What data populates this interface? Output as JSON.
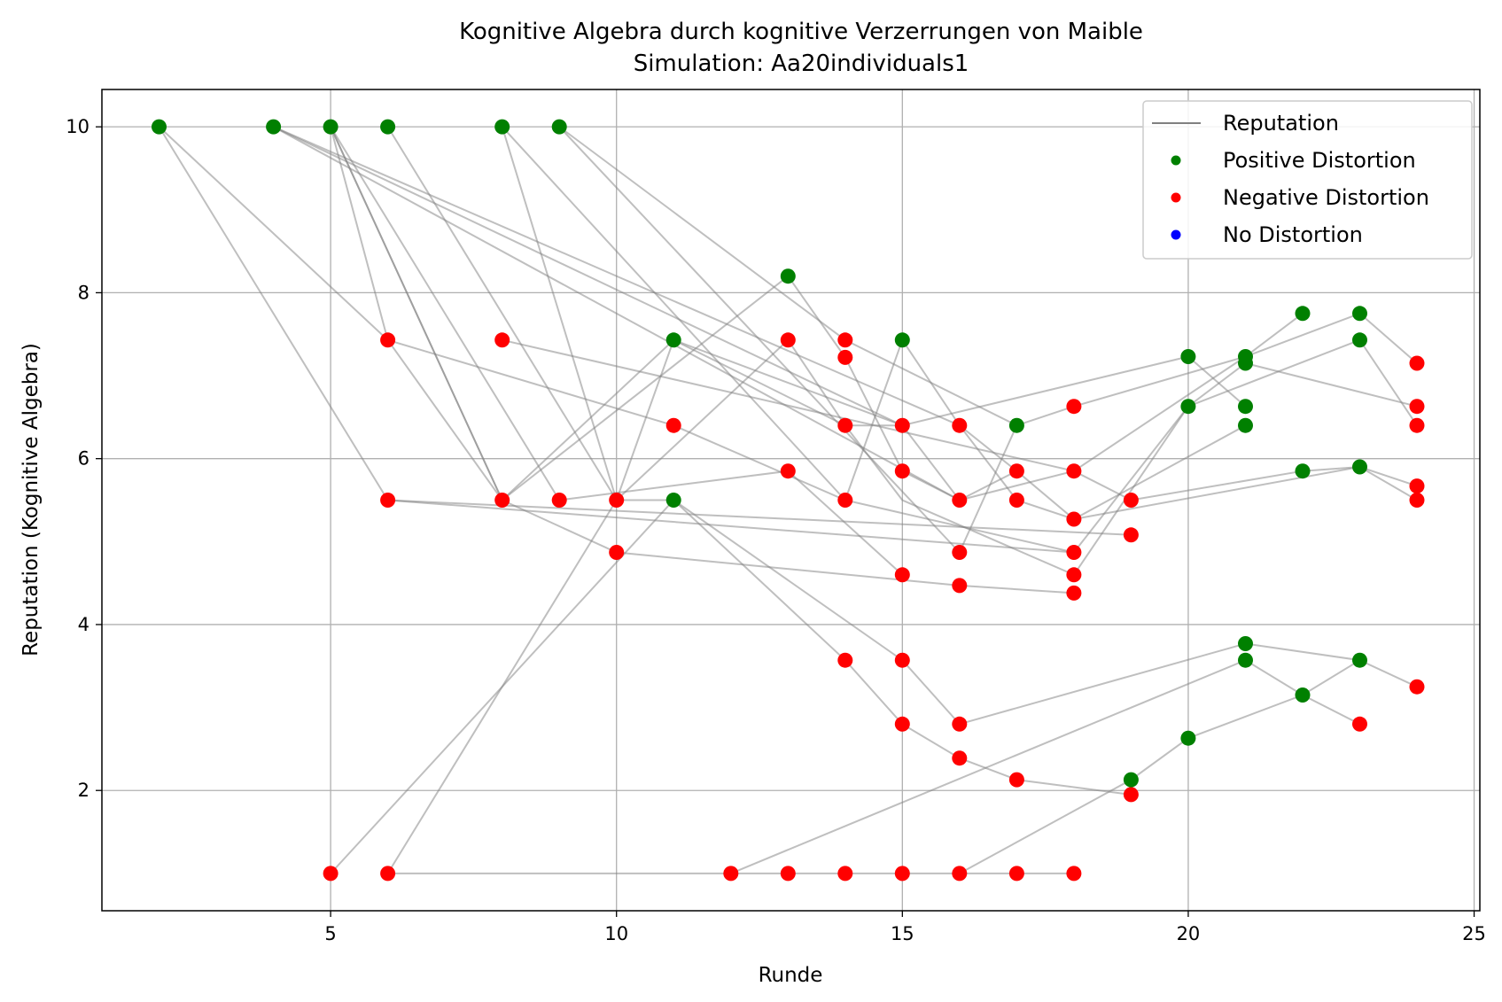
{
  "chart_data": {
    "type": "scatter",
    "title": "Kognitive Algebra durch kognitive Verzerrungen von Maible",
    "subtitle": "Simulation: Aa20individuals1",
    "xlabel": "Runde",
    "ylabel": "Reputation (Kognitive Algebra)",
    "xlim": [
      1,
      25.1
    ],
    "ylim": [
      0.55,
      10.45
    ],
    "xticks": [
      5,
      10,
      15,
      20,
      25
    ],
    "yticks": [
      2,
      4,
      6,
      8,
      10
    ],
    "grid": true,
    "legend_position": "top-right",
    "legend": [
      {
        "label": "Reputation",
        "kind": "line",
        "color": "#808080"
      },
      {
        "label": "Positive Distortion",
        "kind": "marker",
        "color": "#008000"
      },
      {
        "label": "Negative Distortion",
        "kind": "marker",
        "color": "#ff0000"
      },
      {
        "label": "No Distortion",
        "kind": "marker",
        "color": "#0000ff"
      }
    ],
    "colors": {
      "positive": "#008000",
      "negative": "#ff0000",
      "none": "#0000ff",
      "line": "#808080"
    },
    "trajectories": [
      [
        [
          2,
          10
        ],
        [
          6,
          7.43
        ],
        [
          11,
          6.4
        ],
        [
          14,
          5.5
        ],
        [
          15,
          7.43
        ],
        [
          16,
          6.4
        ],
        [
          17,
          5.85
        ],
        [
          18,
          5.27
        ],
        [
          21,
          6.4
        ]
      ],
      [
        [
          2,
          10
        ],
        [
          6,
          5.5
        ],
        [
          18,
          4.87
        ],
        [
          20,
          6.63
        ],
        [
          21,
          7.15
        ],
        [
          24,
          6.63
        ]
      ],
      [
        [
          4,
          10
        ],
        [
          16,
          5.5
        ],
        [
          18,
          5.85
        ],
        [
          21,
          7.23
        ],
        [
          22,
          7.75
        ]
      ],
      [
        [
          4,
          10
        ],
        [
          15,
          6.4
        ],
        [
          20,
          7.23
        ],
        [
          21,
          6.63
        ]
      ],
      [
        [
          4,
          10
        ],
        [
          16,
          6.4
        ],
        [
          17,
          5.5
        ],
        [
          18,
          5.27
        ],
        [
          23,
          5.9
        ],
        [
          24,
          5.5
        ]
      ],
      [
        [
          5,
          10
        ],
        [
          8,
          5.5
        ],
        [
          10,
          4.87
        ],
        [
          16,
          4.47
        ],
        [
          18,
          4.38
        ]
      ],
      [
        [
          5,
          10
        ],
        [
          8,
          5.5
        ],
        [
          11,
          7.43
        ],
        [
          14,
          6.4
        ],
        [
          15,
          5.5
        ],
        [
          18,
          4.6
        ],
        [
          20,
          6.63
        ],
        [
          23,
          7.43
        ],
        [
          24,
          6.4
        ]
      ],
      [
        [
          5,
          10
        ],
        [
          6,
          7.43
        ],
        [
          8,
          5.5
        ],
        [
          13,
          8.2
        ],
        [
          14,
          7.22
        ],
        [
          15,
          5.85
        ],
        [
          16,
          5.5
        ]
      ],
      [
        [
          5,
          10
        ],
        [
          9,
          5.5
        ],
        [
          13,
          5.85
        ],
        [
          15,
          4.6
        ]
      ],
      [
        [
          6,
          10
        ],
        [
          10,
          5.5
        ],
        [
          11,
          5.5
        ],
        [
          14,
          3.57
        ],
        [
          15,
          2.8
        ],
        [
          16,
          2.39
        ],
        [
          17,
          2.13
        ],
        [
          19,
          1.95
        ]
      ],
      [
        [
          8,
          10
        ],
        [
          10,
          5.5
        ],
        [
          11,
          7.43
        ],
        [
          15,
          6.4
        ],
        [
          16,
          5.5
        ],
        [
          17,
          5.85
        ]
      ],
      [
        [
          8,
          10
        ],
        [
          14,
          5.5
        ],
        [
          18,
          4.87
        ]
      ],
      [
        [
          8,
          7.43
        ],
        [
          18,
          5.85
        ],
        [
          19,
          5.5
        ],
        [
          22,
          5.85
        ],
        [
          23,
          5.9
        ],
        [
          24,
          5.67
        ]
      ],
      [
        [
          9,
          10
        ],
        [
          14,
          7.43
        ],
        [
          17,
          6.4
        ],
        [
          18,
          6.63
        ],
        [
          21,
          7.23
        ],
        [
          23,
          7.75
        ],
        [
          24,
          7.15
        ]
      ],
      [
        [
          9,
          10
        ],
        [
          16,
          4.87
        ],
        [
          17,
          6.4
        ]
      ],
      [
        [
          5,
          1
        ],
        [
          11,
          5.5
        ],
        [
          15,
          3.57
        ],
        [
          16,
          2.8
        ],
        [
          21,
          3.77
        ],
        [
          23,
          3.57
        ],
        [
          24,
          3.25
        ]
      ],
      [
        [
          6,
          1
        ],
        [
          10,
          5.5
        ],
        [
          13,
          7.43
        ],
        [
          14,
          6.4
        ],
        [
          15,
          6.4
        ]
      ],
      [
        [
          6,
          1
        ],
        [
          14,
          1
        ],
        [
          16,
          1
        ],
        [
          18,
          1
        ]
      ],
      [
        [
          12,
          1
        ],
        [
          21,
          3.57
        ],
        [
          22,
          3.15
        ],
        [
          23,
          2.8
        ]
      ],
      [
        [
          16,
          1
        ],
        [
          19,
          2.13
        ],
        [
          20,
          2.63
        ],
        [
          22,
          3.15
        ],
        [
          23,
          3.57
        ]
      ],
      [
        [
          6,
          5.5
        ],
        [
          19,
          5.08
        ]
      ]
    ],
    "points_positive": [
      [
        2,
        10
      ],
      [
        4,
        10
      ],
      [
        5,
        10
      ],
      [
        6,
        10
      ],
      [
        8,
        10
      ],
      [
        9,
        10
      ],
      [
        13,
        8.2
      ],
      [
        11,
        7.43
      ],
      [
        15,
        7.43
      ],
      [
        11,
        5.5
      ],
      [
        17,
        6.4
      ],
      [
        20,
        7.23
      ],
      [
        20,
        6.63
      ],
      [
        21,
        7.23
      ],
      [
        21,
        7.15
      ],
      [
        21,
        6.63
      ],
      [
        21,
        6.4
      ],
      [
        22,
        7.75
      ],
      [
        23,
        7.75
      ],
      [
        23,
        7.43
      ],
      [
        22,
        5.85
      ],
      [
        23,
        5.9
      ],
      [
        21,
        3.77
      ],
      [
        21,
        3.57
      ],
      [
        22,
        3.15
      ],
      [
        23,
        3.57
      ],
      [
        20,
        2.63
      ],
      [
        19,
        2.13
      ]
    ],
    "points_negative": [
      [
        6,
        7.43
      ],
      [
        8,
        7.43
      ],
      [
        6,
        5.5
      ],
      [
        8,
        5.5
      ],
      [
        9,
        5.5
      ],
      [
        10,
        5.5
      ],
      [
        10,
        4.87
      ],
      [
        11,
        6.4
      ],
      [
        13,
        7.43
      ],
      [
        13,
        5.85
      ],
      [
        14,
        7.43
      ],
      [
        14,
        7.22
      ],
      [
        14,
        6.4
      ],
      [
        14,
        5.5
      ],
      [
        14,
        3.57
      ],
      [
        15,
        6.4
      ],
      [
        15,
        5.85
      ],
      [
        15,
        4.6
      ],
      [
        15,
        3.57
      ],
      [
        15,
        2.8
      ],
      [
        16,
        6.4
      ],
      [
        16,
        5.5
      ],
      [
        16,
        4.87
      ],
      [
        16,
        4.47
      ],
      [
        16,
        2.8
      ],
      [
        16,
        2.39
      ],
      [
        17,
        5.85
      ],
      [
        17,
        5.5
      ],
      [
        17,
        2.13
      ],
      [
        18,
        6.63
      ],
      [
        18,
        5.85
      ],
      [
        18,
        5.27
      ],
      [
        18,
        4.87
      ],
      [
        18,
        4.6
      ],
      [
        18,
        4.38
      ],
      [
        19,
        5.5
      ],
      [
        19,
        5.08
      ],
      [
        19,
        1.95
      ],
      [
        23,
        2.8
      ],
      [
        24,
        7.15
      ],
      [
        24,
        6.63
      ],
      [
        24,
        6.4
      ],
      [
        24,
        5.67
      ],
      [
        24,
        5.5
      ],
      [
        24,
        3.25
      ],
      [
        5,
        1
      ],
      [
        6,
        1
      ],
      [
        12,
        1
      ],
      [
        13,
        1
      ],
      [
        14,
        1
      ],
      [
        15,
        1
      ],
      [
        16,
        1
      ],
      [
        17,
        1
      ],
      [
        18,
        1
      ]
    ],
    "points_none": []
  }
}
